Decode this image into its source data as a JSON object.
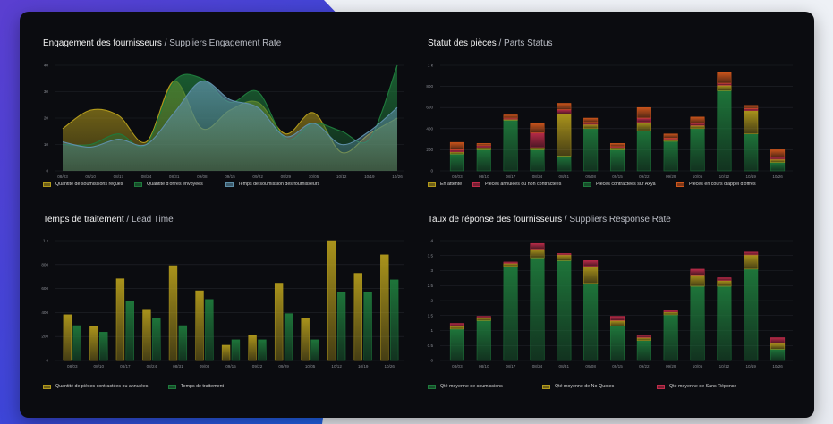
{
  "colors": {
    "panel_bg": "#0b0c10",
    "olive": "#b29a1c",
    "green": "#1f7a3c",
    "blue": "#5e8fa8",
    "red": "#c02c4a",
    "orange": "#d1571c",
    "grid": "#23252b",
    "tick": "#8a8d94"
  },
  "chart_data": [
    {
      "id": "engagement",
      "type": "area",
      "title": "Engagement des fournisseurs",
      "subtitle": "/ Suppliers Engagement Rate",
      "categories": [
        "08/03",
        "08/10",
        "08/17",
        "08/24",
        "08/31",
        "09/08",
        "09/15",
        "09/22",
        "09/29",
        "10/05",
        "10/12",
        "10/19",
        "10/26"
      ],
      "yticks": [
        "0",
        "10",
        "20",
        "30",
        "40"
      ],
      "ylim": [
        0,
        40
      ],
      "legend_placement": "bottom",
      "series": [
        {
          "name": "Quantité de soumissions reçues",
          "color": "#b29a1c",
          "values": [
            16,
            23,
            21,
            11,
            34,
            16,
            23,
            26,
            14,
            22,
            7,
            14,
            20
          ]
        },
        {
          "name": "Quantité d'offres envoyées",
          "color": "#1f7a3c",
          "values": [
            10,
            10,
            14,
            10,
            34,
            35,
            26,
            30,
            12,
            18,
            15,
            12,
            40
          ]
        },
        {
          "name": "Temps de soumission des fournisseurs",
          "color": "#5e8fa8",
          "values": [
            11,
            9,
            12,
            10,
            22,
            34,
            27,
            24,
            13,
            18,
            10,
            15,
            24
          ]
        }
      ]
    },
    {
      "id": "parts-status",
      "type": "bar",
      "stacked": true,
      "title": "Statut des pièces",
      "subtitle": "/ Parts Status",
      "categories": [
        "08/03",
        "08/10",
        "08/17",
        "08/24",
        "08/31",
        "09/08",
        "09/15",
        "09/22",
        "09/29",
        "10/05",
        "10/12",
        "10/19",
        "10/26"
      ],
      "yticks": [
        "0",
        "200",
        "400",
        "600",
        "800",
        "1 k"
      ],
      "ylim": [
        0,
        1000
      ],
      "legend_placement": "bottom",
      "series": [
        {
          "name": "En attente",
          "color": "#b29a1c",
          "values": [
            20,
            20,
            10,
            20,
            400,
            40,
            20,
            80,
            20,
            30,
            50,
            220,
            30
          ]
        },
        {
          "name": "Pièces annulées ou non contractées",
          "color": "#c02c4a",
          "values": [
            20,
            20,
            10,
            140,
            40,
            20,
            10,
            40,
            10,
            20,
            20,
            20,
            20
          ]
        },
        {
          "name": "Pièces contractées sur Axya",
          "color": "#1f7a3c",
          "values": [
            160,
            200,
            480,
            200,
            140,
            400,
            200,
            380,
            280,
            400,
            760,
            350,
            80
          ]
        },
        {
          "name": "Pièces en cours d'appel d'offres",
          "color": "#d1571c",
          "values": [
            70,
            20,
            30,
            90,
            60,
            40,
            30,
            100,
            40,
            60,
            100,
            30,
            70
          ]
        }
      ]
    },
    {
      "id": "lead-time",
      "type": "bar",
      "stacked": false,
      "title": "Temps de traitement",
      "subtitle": "/ Lead Time",
      "categories": [
        "08/03",
        "08/10",
        "08/17",
        "08/24",
        "08/31",
        "09/08",
        "09/15",
        "09/22",
        "09/29",
        "10/05",
        "10/12",
        "10/19",
        "10/26"
      ],
      "yticks": [
        "0",
        "200",
        "400",
        "600",
        "800",
        "1 k"
      ],
      "ylim": [
        0,
        1100
      ],
      "legend_placement": "bottom",
      "series": [
        {
          "name": "Quantité de pièces contractées ou annulées",
          "color": "#b29a1c",
          "values": [
            420,
            310,
            750,
            470,
            870,
            640,
            140,
            230,
            710,
            390,
            1100,
            800,
            970
          ]
        },
        {
          "name": "Temps de traitement",
          "color": "#1f7a3c",
          "values": [
            320,
            260,
            540,
            390,
            320,
            560,
            190,
            190,
            430,
            190,
            630,
            630,
            740
          ]
        }
      ]
    },
    {
      "id": "response-rate",
      "type": "bar",
      "stacked": true,
      "title": "Taux de réponse des fournisseurs",
      "subtitle": "/ Suppliers Response Rate",
      "categories": [
        "08/03",
        "08/10",
        "08/17",
        "08/24",
        "08/31",
        "09/08",
        "09/15",
        "09/22",
        "09/29",
        "10/05",
        "10/12",
        "10/19",
        "10/26"
      ],
      "yticks": [
        "0",
        "0.5",
        "1",
        "1.5",
        "2",
        "2.5",
        "3",
        "3.5",
        "4"
      ],
      "ylim": [
        0,
        4.2
      ],
      "legend_placement": "bottom",
      "series": [
        {
          "name": "Qté moyenne de soumissions",
          "color": "#1f7a3c",
          "values": [
            1.1,
            1.4,
            3.3,
            3.6,
            3.5,
            2.7,
            1.2,
            0.7,
            1.6,
            2.6,
            2.6,
            3.2,
            0.4
          ]
        },
        {
          "name": "Qté moyenne de No-Quotes",
          "color": "#b29a1c",
          "values": [
            0.1,
            0.1,
            0.1,
            0.3,
            0.2,
            0.6,
            0.2,
            0.1,
            0.1,
            0.4,
            0.2,
            0.5,
            0.2
          ]
        },
        {
          "name": "Qté moyenne de Sans Réponse",
          "color": "#c02c4a",
          "values": [
            0.1,
            0.05,
            0.05,
            0.2,
            0.05,
            0.2,
            0.15,
            0.1,
            0.05,
            0.2,
            0.1,
            0.1,
            0.2
          ]
        }
      ]
    }
  ]
}
